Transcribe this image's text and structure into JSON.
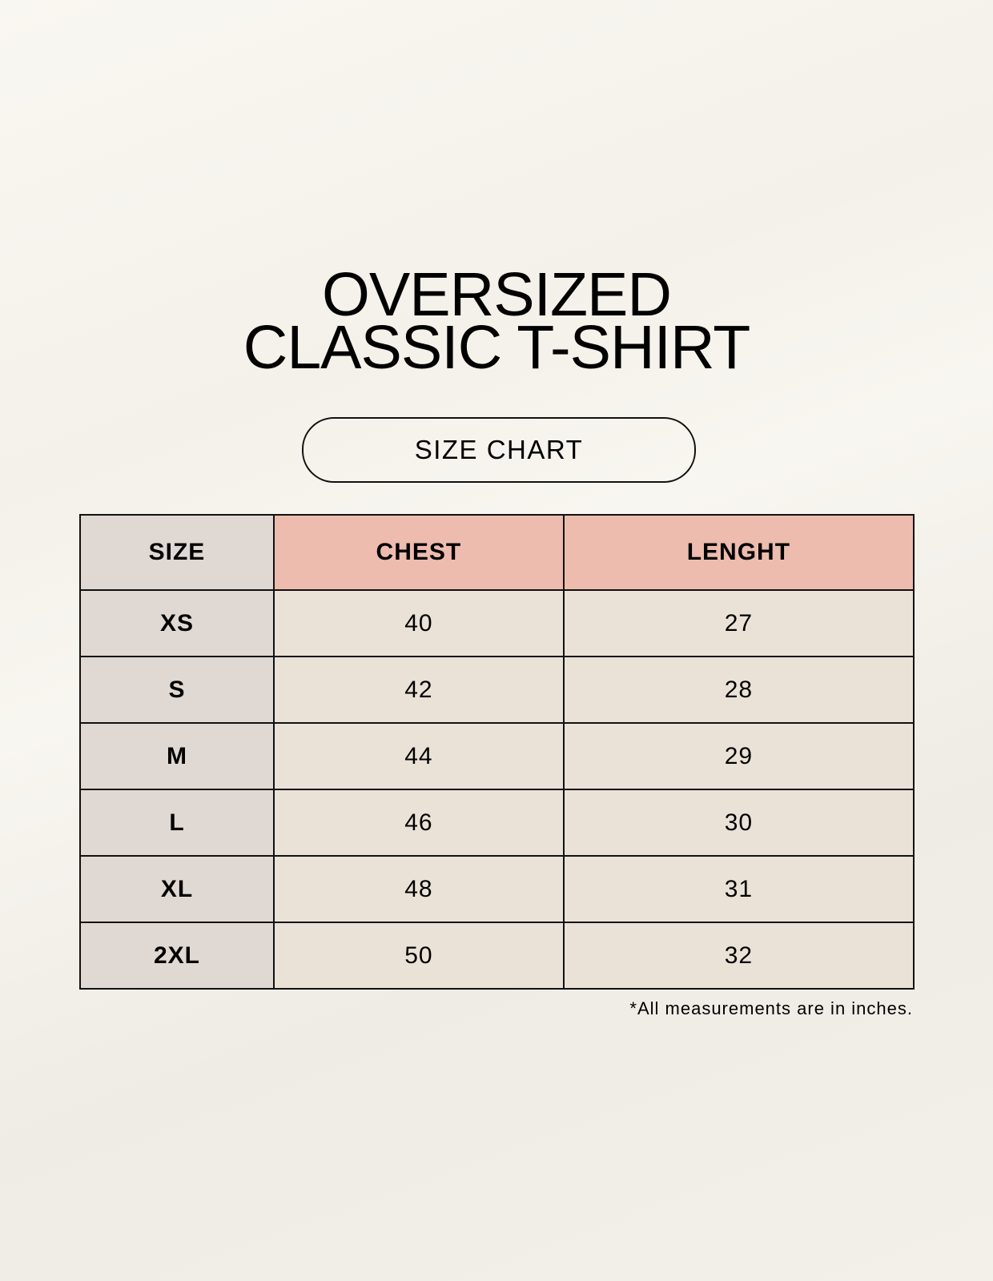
{
  "title": {
    "line1": "OVERSIZED",
    "line2": "CLASSIC T-SHIRT"
  },
  "badge": "SIZE CHART",
  "table": {
    "headers": [
      "SIZE",
      "CHEST",
      "LENGHT"
    ],
    "rows": [
      [
        "XS",
        "40",
        "27"
      ],
      [
        "S",
        "42",
        "28"
      ],
      [
        "M",
        "44",
        "29"
      ],
      [
        "L",
        "46",
        "30"
      ],
      [
        "XL",
        "48",
        "31"
      ],
      [
        "2XL",
        "50",
        "32"
      ]
    ]
  },
  "footnote": "*All measurements are in inches.",
  "colors": {
    "size_column": "#e0d8d2",
    "header_accent": "#edbcae",
    "cell": "#eae2d7",
    "background": "#f7f4ee"
  }
}
